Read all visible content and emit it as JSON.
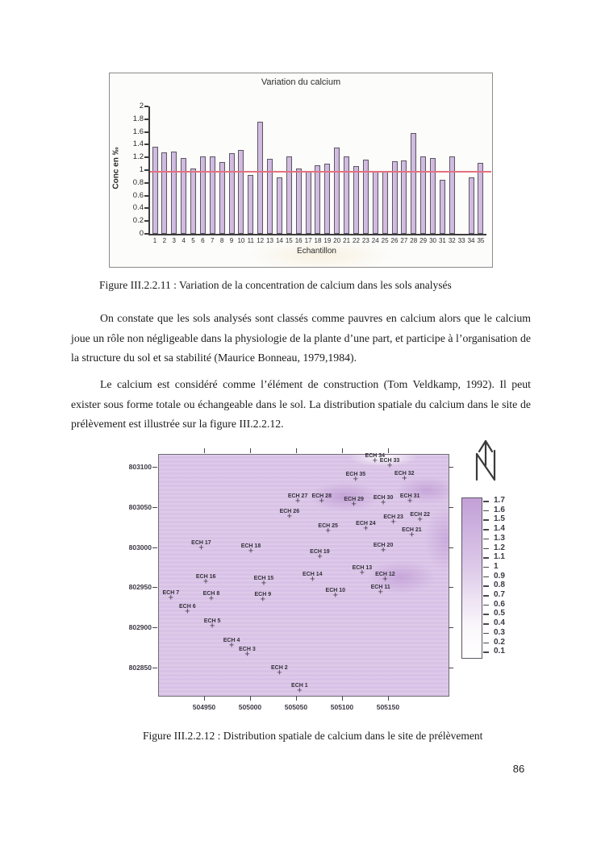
{
  "page": {
    "number": "86"
  },
  "figures": {
    "fig1_caption": "Figure III.2.2.11 : Variation de la concentration de calcium dans les sols analysés",
    "fig2_caption": "Figure III.2.2.12 : Distribution spatiale de calcium dans le site de prélèvement"
  },
  "paragraphs": [
    {
      "text": "On constate que les sols analysés sont classés comme pauvres en calcium alors que le calcium joue un rôle non négligeable dans la physiologie de la plante d’une part, et participe à l’organisation de la structure du sol et sa stabilité (Maurice Bonneau, 1979,1984)."
    },
    {
      "text": "Le calcium est considéré comme l’élément de construction (Tom Veldkamp, 1992). Il peut exister sous forme totale ou échangeable dans le sol. La distribution spatiale du calcium dans le site de prélèvement est illustrée sur la figure III.2.2.12."
    }
  ],
  "chart_data": [
    {
      "type": "bar",
      "title": "Variation du calcium",
      "xlabel": "Echantillon",
      "ylabel": "Conc en ‰",
      "ylim": [
        0,
        2
      ],
      "ytick_step": 0.2,
      "grid": false,
      "categories": [
        "1",
        "2",
        "3",
        "4",
        "5",
        "6",
        "7",
        "8",
        "9",
        "10",
        "11",
        "12",
        "13",
        "14",
        "15",
        "16",
        "17",
        "18",
        "19",
        "20",
        "21",
        "22",
        "23",
        "24",
        "25",
        "26",
        "27",
        "28",
        "29",
        "30",
        "31",
        "32",
        "33",
        "34",
        "35"
      ],
      "values": [
        1.37,
        1.28,
        1.29,
        1.19,
        1.03,
        1.22,
        1.21,
        1.13,
        1.26,
        1.32,
        0.93,
        1.76,
        1.18,
        0.88,
        1.21,
        1.02,
        0.98,
        1.07,
        1.1,
        1.36,
        1.21,
        1.06,
        1.17,
        0.98,
        0.97,
        1.14,
        1.15,
        1.58,
        1.22,
        1.19,
        0.85,
        1.21,
        0,
        0.88,
        1.12
      ],
      "reference_line": {
        "value": 0.98,
        "color": "#e4717f"
      },
      "bar_color": "#d5c2e3",
      "bar_border": "#5c5662"
    },
    {
      "type": "scatter",
      "title": "",
      "xlim": [
        504900,
        505215
      ],
      "ylim": [
        802816,
        803116
      ],
      "x_ticks": [
        504950,
        505000,
        505050,
        505100,
        505150
      ],
      "y_ticks": [
        803100,
        803050,
        803000,
        802950,
        802900,
        802850
      ],
      "legend_position": "right",
      "legend": {
        "ticks": [
          1.7,
          1.6,
          1.5,
          1.4,
          1.3,
          1.2,
          1.1,
          1,
          0.9,
          0.8,
          0.7,
          0.6,
          0.5,
          0.4,
          0.3,
          0.2,
          0.1
        ]
      },
      "north_arrow_icon": "north-arrow-icon",
      "base_color": "#dcc7e8",
      "high_color": "#c3a0d7",
      "points": [
        {
          "label": "ECH 1",
          "x": 505053,
          "y": 802822
        },
        {
          "label": "ECH 2",
          "x": 505031,
          "y": 802844
        },
        {
          "label": "ECH 3",
          "x": 504996,
          "y": 802867
        },
        {
          "label": "ECH 4",
          "x": 504979,
          "y": 802878
        },
        {
          "label": "ECH 5",
          "x": 504958,
          "y": 802902
        },
        {
          "label": "ECH 6",
          "x": 504931,
          "y": 802920
        },
        {
          "label": "ECH 7",
          "x": 504913,
          "y": 802937
        },
        {
          "label": "ECH 8",
          "x": 504957,
          "y": 802936
        },
        {
          "label": "ECH 9",
          "x": 505013,
          "y": 802935
        },
        {
          "label": "ECH 10",
          "x": 505092,
          "y": 802940
        },
        {
          "label": "ECH 11",
          "x": 505141,
          "y": 802944
        },
        {
          "label": "ECH 12",
          "x": 505146,
          "y": 802960
        },
        {
          "label": "ECH 13",
          "x": 505121,
          "y": 802969
        },
        {
          "label": "ECH 14",
          "x": 505067,
          "y": 802960
        },
        {
          "label": "ECH 15",
          "x": 505014,
          "y": 802955
        },
        {
          "label": "ECH 16",
          "x": 504951,
          "y": 802957
        },
        {
          "label": "ECH 17",
          "x": 504946,
          "y": 803000
        },
        {
          "label": "ECH 18",
          "x": 505000,
          "y": 802996
        },
        {
          "label": "ECH 19",
          "x": 505075,
          "y": 802989
        },
        {
          "label": "ECH 20",
          "x": 505144,
          "y": 802997
        },
        {
          "label": "ECH 21",
          "x": 505175,
          "y": 803016
        },
        {
          "label": "ECH 22",
          "x": 505184,
          "y": 803035
        },
        {
          "label": "ECH 23",
          "x": 505155,
          "y": 803032
        },
        {
          "label": "ECH 24",
          "x": 505125,
          "y": 803024
        },
        {
          "label": "ECH 25",
          "x": 505084,
          "y": 803021
        },
        {
          "label": "ECH 26",
          "x": 505042,
          "y": 803039
        },
        {
          "label": "ECH 27",
          "x": 505051,
          "y": 803058
        },
        {
          "label": "ECH 28",
          "x": 505077,
          "y": 803058
        },
        {
          "label": "ECH 29",
          "x": 505112,
          "y": 803054
        },
        {
          "label": "ECH 30",
          "x": 505144,
          "y": 803056
        },
        {
          "label": "ECH 31",
          "x": 505173,
          "y": 803058
        },
        {
          "label": "ECH 32",
          "x": 505167,
          "y": 803086
        },
        {
          "label": "ECH 33",
          "x": 505151,
          "y": 803102
        },
        {
          "label": "ECH 34",
          "x": 505135,
          "y": 803108
        },
        {
          "label": "ECH 35",
          "x": 505114,
          "y": 803085
        }
      ]
    }
  ]
}
